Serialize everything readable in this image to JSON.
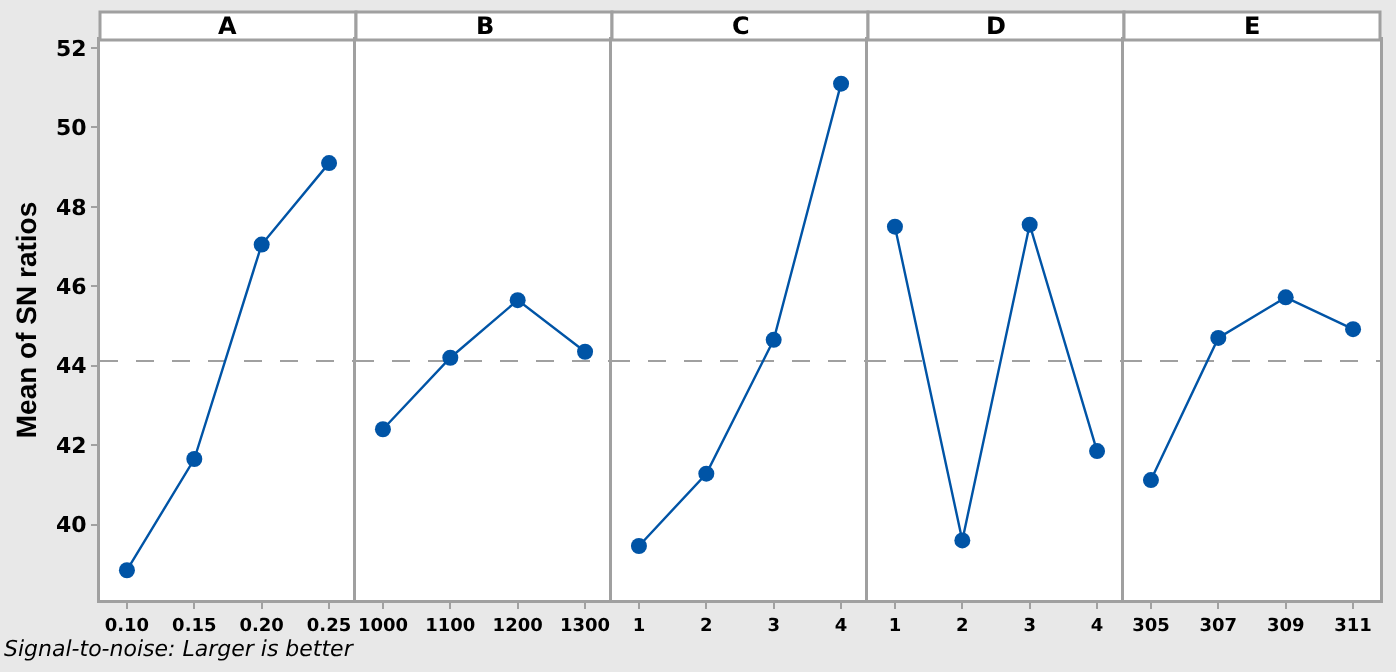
{
  "chart_data": [
    {
      "type": "line",
      "title": "A",
      "ylabel": "Mean of SN ratios",
      "annotations": [
        "Signal-to-noise: Larger is better"
      ],
      "categories": [
        "0.10",
        "0.15",
        "0.20",
        "0.25"
      ],
      "series": [
        {
          "color": "#0054a6",
          "values": [
            38.85,
            41.65,
            47.05,
            49.1
          ]
        }
      ],
      "ylim": [
        38.1,
        52.2
      ],
      "yticks": [
        40,
        42,
        44,
        46,
        48,
        50,
        52
      ],
      "ref_lines": [
        {
          "axis": "y",
          "value": 44.12,
          "color": "#a0a0a0",
          "line_style": "dashed"
        }
      ],
      "marker": "circle",
      "line_style": "solid",
      "grid": false
    },
    {
      "type": "line",
      "title": "B",
      "categories": [
        "1000",
        "1100",
        "1200",
        "1300"
      ],
      "series": [
        {
          "color": "#0054a6",
          "values": [
            42.4,
            44.2,
            45.65,
            44.35
          ]
        }
      ],
      "ylim": [
        38.1,
        52.2
      ],
      "yticks": [
        40,
        42,
        44,
        46,
        48,
        50,
        52
      ],
      "tick_labels": "x",
      "ref_lines": [
        {
          "axis": "y",
          "value": 44.12,
          "color": "#a0a0a0",
          "line_style": "dashed"
        }
      ],
      "marker": "circle",
      "line_style": "solid",
      "grid": false
    },
    {
      "type": "line",
      "title": "C",
      "categories": [
        "1",
        "2",
        "3",
        "4"
      ],
      "series": [
        {
          "color": "#0054a6",
          "values": [
            39.46,
            41.28,
            44.65,
            51.1
          ]
        }
      ],
      "ylim": [
        38.1,
        52.2
      ],
      "yticks": [
        40,
        42,
        44,
        46,
        48,
        50,
        52
      ],
      "tick_labels": "x",
      "ref_lines": [
        {
          "axis": "y",
          "value": 44.12,
          "color": "#a0a0a0",
          "line_style": "dashed"
        }
      ],
      "marker": "circle",
      "line_style": "solid",
      "grid": false
    },
    {
      "type": "line",
      "title": "D",
      "categories": [
        "1",
        "2",
        "3",
        "4"
      ],
      "series": [
        {
          "color": "#0054a6",
          "values": [
            47.5,
            39.6,
            47.55,
            41.85
          ]
        }
      ],
      "ylim": [
        38.1,
        52.2
      ],
      "yticks": [
        40,
        42,
        44,
        46,
        48,
        50,
        52
      ],
      "tick_labels": "x",
      "ref_lines": [
        {
          "axis": "y",
          "value": 44.12,
          "color": "#a0a0a0",
          "line_style": "dashed"
        }
      ],
      "marker": "circle",
      "line_style": "solid",
      "grid": false
    },
    {
      "type": "line",
      "title": "E",
      "categories": [
        "305",
        "307",
        "309",
        "311"
      ],
      "series": [
        {
          "color": "#0054a6",
          "values": [
            41.12,
            44.7,
            45.72,
            44.92
          ]
        }
      ],
      "ylim": [
        38.1,
        52.2
      ],
      "yticks": [
        40,
        42,
        44,
        46,
        48,
        50,
        52
      ],
      "tick_labels": "x",
      "ref_lines": [
        {
          "axis": "y",
          "value": 44.12,
          "color": "#a0a0a0",
          "line_style": "dashed"
        }
      ],
      "marker": "circle",
      "line_style": "solid",
      "grid": false
    }
  ]
}
